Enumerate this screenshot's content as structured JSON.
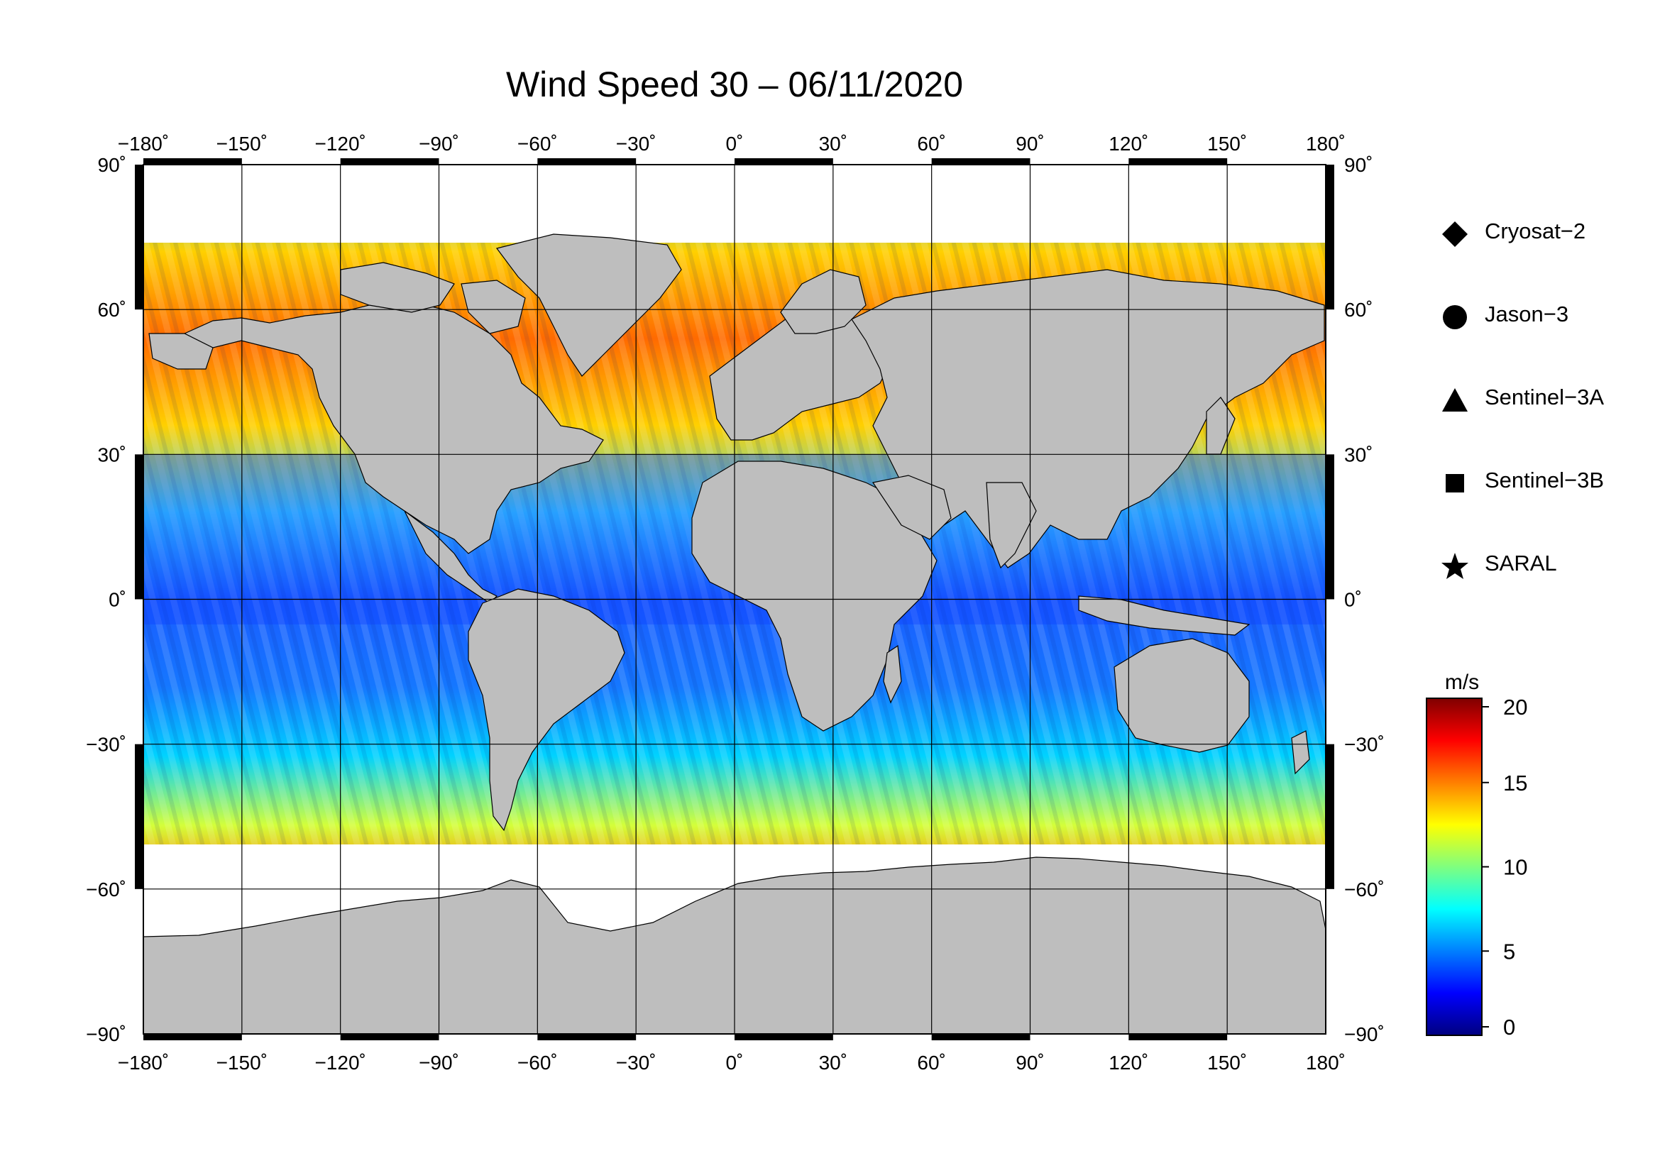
{
  "title": "Wind Speed 30 – 06/11/2020",
  "map": {
    "lon_ticks": [
      "−180˚",
      "−150˚",
      "−120˚",
      "−90˚",
      "−60˚",
      "−30˚",
      "0˚",
      "30˚",
      "60˚",
      "90˚",
      "120˚",
      "150˚",
      "180˚"
    ],
    "lat_ticks_left": [
      "90˚",
      "60˚",
      "30˚",
      "0˚",
      "−30˚",
      "−60˚",
      "−90˚"
    ],
    "lat_ticks_right": [
      "90˚",
      "60˚",
      "30˚",
      "0˚",
      "−30˚",
      "−60˚",
      "−90˚"
    ],
    "land_color": "#bebebe",
    "ice_color": "#ffffff"
  },
  "legend": {
    "items": [
      {
        "label": "Cryosat−2",
        "symbol": "diamond"
      },
      {
        "label": "Jason−3",
        "symbol": "circle"
      },
      {
        "label": "Sentinel−3A",
        "symbol": "triangle"
      },
      {
        "label": "Sentinel−3B",
        "symbol": "square"
      },
      {
        "label": "SARAL",
        "symbol": "star"
      }
    ]
  },
  "colorbar": {
    "unit": "m/s",
    "min": 0,
    "max": 20,
    "ticks": [
      "20",
      "15",
      "10",
      "5",
      "0"
    ],
    "colormap": [
      "#00007f",
      "#0000ff",
      "#007fff",
      "#00ffff",
      "#7fff7f",
      "#ffff00",
      "#ff7f00",
      "#ff0000",
      "#7f0000"
    ]
  }
}
